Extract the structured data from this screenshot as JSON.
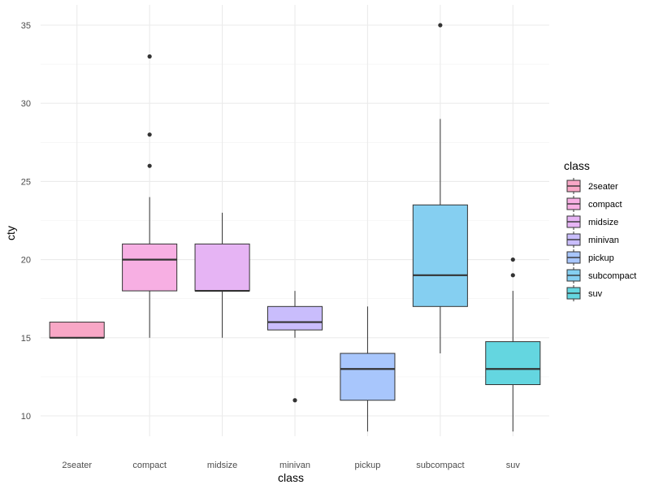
{
  "chart_data": {
    "type": "boxplot",
    "title": "",
    "xlabel": "class",
    "ylabel": "cty",
    "ylim": [
      8.7,
      36.3
    ],
    "yticks": [
      10,
      15,
      20,
      25,
      30,
      35
    ],
    "grid": true,
    "legend": {
      "title": "class",
      "placement": "right"
    },
    "categories": [
      "2seater",
      "compact",
      "midsize",
      "minivan",
      "pickup",
      "subcompact",
      "suv"
    ],
    "colors": [
      "#F8A7C6",
      "#F7AFE3",
      "#E6B4F4",
      "#C9BDFC",
      "#A8C6FC",
      "#85CFF1",
      "#64D6E0"
    ],
    "boxes": [
      {
        "category": "2seater",
        "lower_whisker": 15,
        "q1": 15,
        "median": 15,
        "q3": 16,
        "upper_whisker": 16,
        "outliers": []
      },
      {
        "category": "compact",
        "lower_whisker": 15,
        "q1": 18,
        "median": 20,
        "q3": 21,
        "upper_whisker": 24,
        "outliers": [
          26,
          28,
          33
        ]
      },
      {
        "category": "midsize",
        "lower_whisker": 15,
        "q1": 18,
        "median": 18,
        "q3": 21,
        "upper_whisker": 23,
        "outliers": []
      },
      {
        "category": "minivan",
        "lower_whisker": 15,
        "q1": 15.5,
        "median": 16,
        "q3": 17,
        "upper_whisker": 18,
        "outliers": [
          11
        ]
      },
      {
        "category": "pickup",
        "lower_whisker": 9,
        "q1": 11,
        "median": 13,
        "q3": 14,
        "upper_whisker": 17,
        "outliers": []
      },
      {
        "category": "subcompact",
        "lower_whisker": 14,
        "q1": 17,
        "median": 19,
        "q3": 23.5,
        "upper_whisker": 29,
        "outliers": [
          35
        ]
      },
      {
        "category": "suv",
        "lower_whisker": 9,
        "q1": 12,
        "median": 13,
        "q3": 14.75,
        "upper_whisker": 18,
        "outliers": [
          19,
          20
        ]
      }
    ]
  }
}
